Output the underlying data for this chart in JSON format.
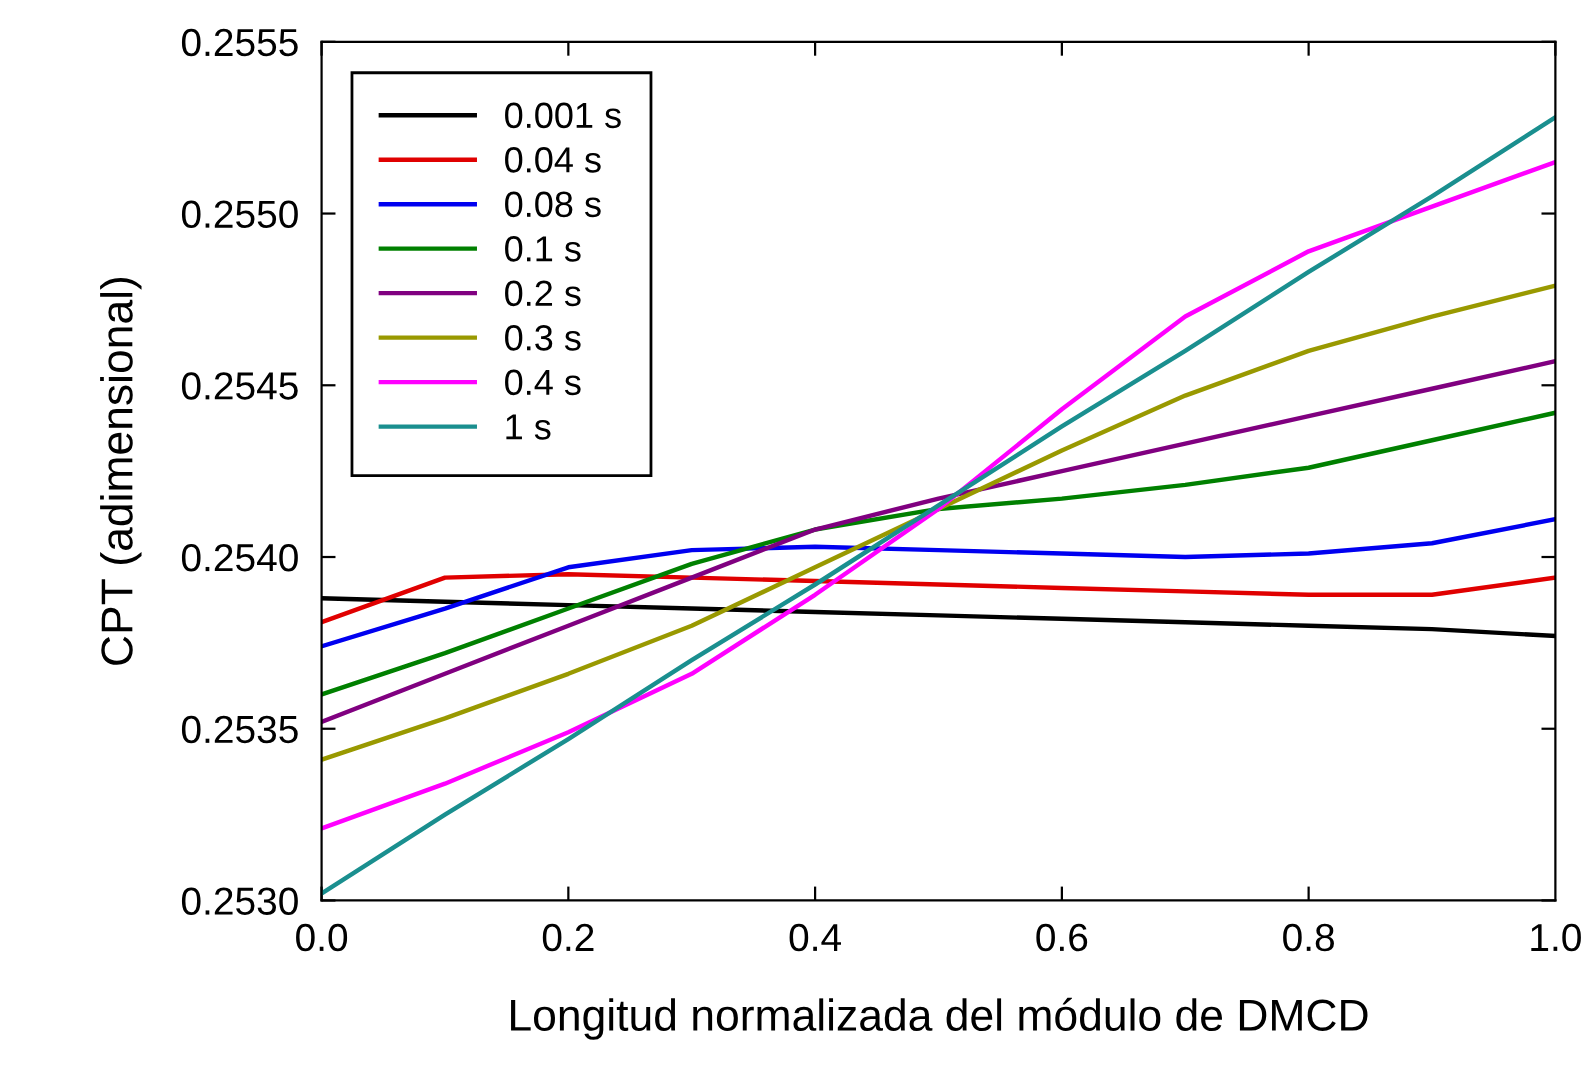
{
  "chart_data": {
    "type": "line",
    "xlabel": "Longitud normalizada del módulo de DMCD",
    "ylabel": "CPT (adimensional)",
    "x": [
      0,
      0.1,
      0.2,
      0.3,
      0.4,
      0.5,
      0.6,
      0.7,
      0.8,
      0.9,
      1.0
    ],
    "xlim": [
      0,
      1
    ],
    "xticks": [
      {
        "value": 0,
        "label": "0.0"
      },
      0.2,
      0.4,
      0.6,
      0.8,
      {
        "value": 1,
        "label": "1.0"
      }
    ],
    "ylim": [
      0.253,
      0.2555
    ],
    "yticks": [
      {
        "value": 0.253,
        "label": "0.2530"
      },
      {
        "value": 0.2535,
        "label": "0.2535"
      },
      {
        "value": 0.254,
        "label": "0.2540"
      },
      {
        "value": 0.2545,
        "label": "0.2545"
      },
      {
        "value": 0.255,
        "label": "0.2550"
      },
      {
        "value": 0.2555,
        "label": "0.2555"
      }
    ],
    "grid": false,
    "legend": "top left",
    "marker": "none",
    "line_style": "solid",
    "series": [
      {
        "name": "0.001 s",
        "color": "#000000",
        "values": [
          0.25388,
          0.25387,
          0.25386,
          0.25385,
          0.25384,
          0.25383,
          0.25382,
          0.25381,
          0.2538,
          0.25379,
          0.25377
        ]
      },
      {
        "name": "0.04 s",
        "color": "#e00000",
        "values": [
          0.25381,
          0.25394,
          0.25395,
          0.25394,
          0.25393,
          0.25392,
          0.25391,
          0.2539,
          0.25389,
          0.25389,
          0.25394
        ]
      },
      {
        "name": "0.08 s",
        "color": "#0000f0",
        "values": [
          0.25374,
          0.25385,
          0.25397,
          0.25402,
          0.25403,
          0.25402,
          0.25401,
          0.254,
          0.25401,
          0.25404,
          0.25411
        ]
      },
      {
        "name": "0.1 s",
        "color": "#008000",
        "values": [
          0.2536,
          0.25372,
          0.25385,
          0.25398,
          0.25408,
          0.25414,
          0.25417,
          0.25421,
          0.25426,
          0.25434,
          0.25442
        ]
      },
      {
        "name": "0.2 s",
        "color": "#800080",
        "values": [
          0.25352,
          0.25366,
          0.2538,
          0.25394,
          0.25408,
          0.25417,
          0.25425,
          0.25433,
          0.25441,
          0.25449,
          0.25457
        ]
      },
      {
        "name": "0.3 s",
        "color": "#999900",
        "values": [
          0.25341,
          0.25353,
          0.25366,
          0.2538,
          0.25397,
          0.25414,
          0.25431,
          0.25447,
          0.2546,
          0.2547,
          0.25479
        ]
      },
      {
        "name": "0.4 s",
        "color": "#ff00ff",
        "values": [
          0.25321,
          0.25334,
          0.25349,
          0.25366,
          0.25389,
          0.25414,
          0.25443,
          0.2547,
          0.25489,
          0.25502,
          0.25515
        ]
      },
      {
        "name": "1 s",
        "color": "#1a8f8f",
        "values": [
          0.25302,
          0.25325,
          0.25347,
          0.2537,
          0.25392,
          0.25415,
          0.25438,
          0.2546,
          0.25483,
          0.25505,
          0.25528
        ]
      }
    ]
  }
}
